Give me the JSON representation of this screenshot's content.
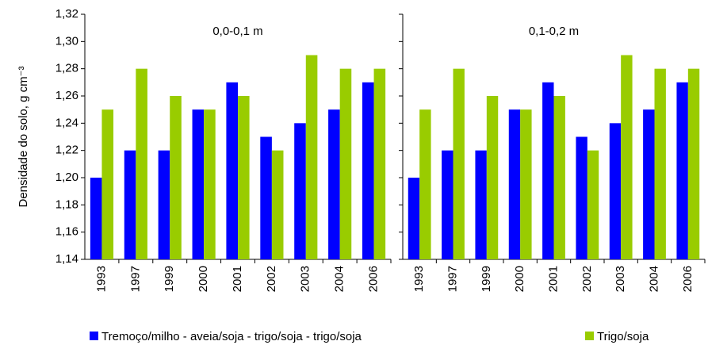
{
  "chart_data": [
    {
      "type": "bar",
      "title": "0,0-0,1 m",
      "ylabel": "Densidade do solo, g cm⁻³",
      "categories": [
        "1993",
        "1997",
        "1999",
        "2000",
        "2001",
        "2002",
        "2003",
        "2004",
        "2006"
      ],
      "series": [
        {
          "name": "Tremoço/milho - aveia/soja - trigo/soja - trigo/soja",
          "color": "#0000ff",
          "values": [
            1.2,
            1.22,
            1.22,
            1.25,
            1.27,
            1.23,
            1.24,
            1.25,
            1.27
          ]
        },
        {
          "name": "Trigo/soja",
          "color": "#99cc00",
          "values": [
            1.25,
            1.28,
            1.26,
            1.25,
            1.26,
            1.22,
            1.29,
            1.28,
            1.28
          ]
        }
      ],
      "ylim": [
        1.14,
        1.32
      ],
      "yticks": [
        {
          "value": 1.14,
          "label": "1,14"
        },
        {
          "value": 1.16,
          "label": "1,16"
        },
        {
          "value": 1.18,
          "label": "1,18"
        },
        {
          "value": 1.2,
          "label": "1,20"
        },
        {
          "value": 1.22,
          "label": "1,22"
        },
        {
          "value": 1.24,
          "label": "1,24"
        },
        {
          "value": 1.26,
          "label": "1,26"
        },
        {
          "value": 1.28,
          "label": "1,28"
        },
        {
          "value": 1.3,
          "label": "1,30"
        },
        {
          "value": 1.32,
          "label": "1,32"
        }
      ]
    },
    {
      "type": "bar",
      "title": "0,1-0,2 m",
      "categories": [
        "1993",
        "1997",
        "1999",
        "2000",
        "2001",
        "2002",
        "2003",
        "2004",
        "2006"
      ],
      "series": [
        {
          "color": "#0000ff",
          "values": [
            1.2,
            1.22,
            1.22,
            1.25,
            1.27,
            1.23,
            1.24,
            1.25,
            1.27
          ]
        },
        {
          "color": "#99cc00",
          "values": [
            1.25,
            1.28,
            1.26,
            1.25,
            1.26,
            1.22,
            1.29,
            1.28,
            1.28
          ]
        }
      ],
      "ylim": [
        1.14,
        1.32
      ],
      "yticks": [
        1.14,
        1.16,
        1.18,
        1.2,
        1.22,
        1.24,
        1.26,
        1.28,
        1.3,
        1.32
      ]
    }
  ]
}
